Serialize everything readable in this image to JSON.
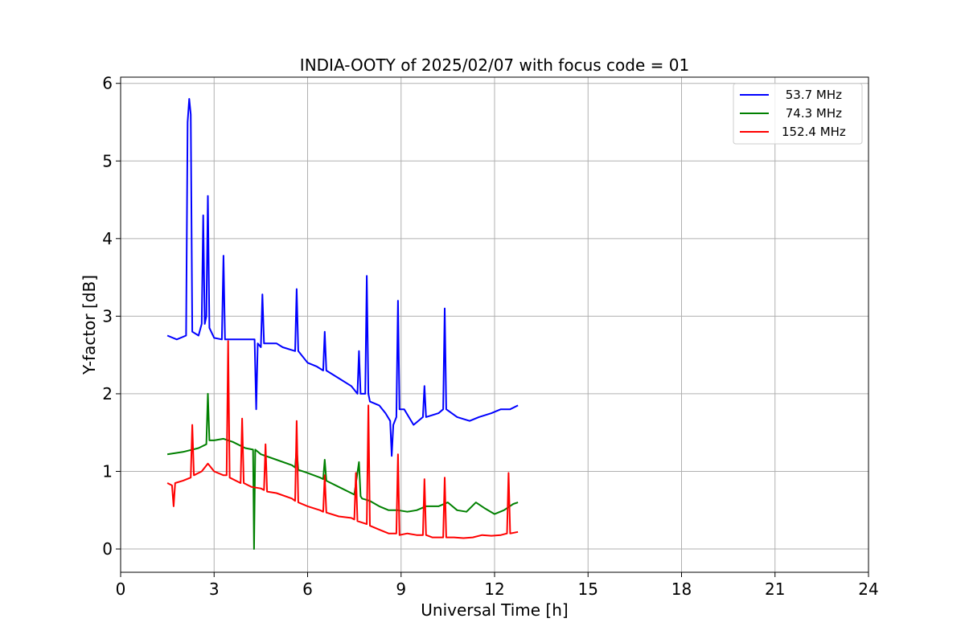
{
  "chart_data": {
    "type": "line",
    "title": "INDIA-OOTY of 2025/02/07 with focus code = 01",
    "xlabel": "Universal Time [h]",
    "ylabel": "Y-factor [dB]",
    "xlim": [
      0,
      24
    ],
    "ylim": [
      -0.3,
      6.08
    ],
    "xticks": [
      "0",
      "3",
      "6",
      "9",
      "12",
      "15",
      "18",
      "21",
      "24"
    ],
    "yticks": [
      "0",
      "1",
      "2",
      "3",
      "4",
      "5",
      "6"
    ],
    "grid": true,
    "legend_position": "top-right",
    "series": [
      {
        "name": " 53.7 MHz",
        "color": "#0000ff",
        "x": [
          1.5,
          1.8,
          2.1,
          2.15,
          2.2,
          2.25,
          2.3,
          2.5,
          2.6,
          2.65,
          2.7,
          2.75,
          2.8,
          2.85,
          3.0,
          3.25,
          3.3,
          3.35,
          3.6,
          4.0,
          4.3,
          4.35,
          4.4,
          4.5,
          4.55,
          4.6,
          4.65,
          5.0,
          5.2,
          5.6,
          5.65,
          5.7,
          6.0,
          6.3,
          6.5,
          6.55,
          6.6,
          7.0,
          7.4,
          7.6,
          7.65,
          7.7,
          7.85,
          7.9,
          7.95,
          8.0,
          8.3,
          8.5,
          8.65,
          8.7,
          8.75,
          8.85,
          8.9,
          8.95,
          9.1,
          9.4,
          9.7,
          9.75,
          9.8,
          10.2,
          10.35,
          10.4,
          10.45,
          10.8,
          11.2,
          11.5,
          11.9,
          12.2,
          12.5,
          12.75
        ],
        "y": [
          2.75,
          2.7,
          2.75,
          5.5,
          5.8,
          5.6,
          2.8,
          2.75,
          2.9,
          4.3,
          2.9,
          3.0,
          4.55,
          2.85,
          2.72,
          2.7,
          3.78,
          2.7,
          2.7,
          2.7,
          2.7,
          1.8,
          2.65,
          2.6,
          3.28,
          2.65,
          2.65,
          2.65,
          2.6,
          2.55,
          3.35,
          2.55,
          2.4,
          2.35,
          2.3,
          2.8,
          2.3,
          2.2,
          2.1,
          2.0,
          2.55,
          2.0,
          2.0,
          3.52,
          2.0,
          1.9,
          1.85,
          1.75,
          1.65,
          1.2,
          1.6,
          1.7,
          3.2,
          1.8,
          1.8,
          1.6,
          1.7,
          2.1,
          1.7,
          1.75,
          1.8,
          3.1,
          1.8,
          1.7,
          1.65,
          1.7,
          1.75,
          1.8,
          1.8,
          1.85
        ]
      },
      {
        "name": " 74.3 MHz",
        "color": "#008000",
        "x": [
          1.5,
          2.0,
          2.5,
          2.75,
          2.8,
          2.85,
          3.0,
          3.3,
          3.6,
          4.0,
          4.25,
          4.28,
          4.32,
          4.5,
          5.0,
          5.5,
          5.6,
          5.65,
          5.7,
          6.0,
          6.4,
          6.5,
          6.55,
          6.6,
          7.0,
          7.5,
          7.65,
          7.7,
          7.75,
          8.0,
          8.3,
          8.6,
          8.9,
          9.2,
          9.5,
          9.8,
          10.2,
          10.5,
          10.8,
          11.1,
          11.4,
          11.7,
          12.0,
          12.3,
          12.6,
          12.75
        ],
        "y": [
          1.22,
          1.25,
          1.3,
          1.35,
          2.0,
          1.4,
          1.4,
          1.42,
          1.38,
          1.3,
          1.28,
          0.0,
          1.28,
          1.22,
          1.15,
          1.08,
          1.05,
          1.3,
          1.02,
          0.98,
          0.92,
          0.9,
          1.15,
          0.88,
          0.8,
          0.7,
          1.12,
          0.68,
          0.65,
          0.62,
          0.55,
          0.5,
          0.5,
          0.48,
          0.5,
          0.55,
          0.55,
          0.6,
          0.5,
          0.48,
          0.6,
          0.52,
          0.45,
          0.5,
          0.58,
          0.6
        ]
      },
      {
        "name": "152.4 MHz",
        "color": "#ff0000",
        "x": [
          1.5,
          1.65,
          1.7,
          1.75,
          2.0,
          2.25,
          2.3,
          2.35,
          2.6,
          2.8,
          3.0,
          3.3,
          3.4,
          3.45,
          3.5,
          3.85,
          3.9,
          3.95,
          4.2,
          4.5,
          4.6,
          4.65,
          4.7,
          5.0,
          5.5,
          5.6,
          5.65,
          5.7,
          6.0,
          6.4,
          6.5,
          6.55,
          6.6,
          7.0,
          7.4,
          7.5,
          7.55,
          7.6,
          7.9,
          7.95,
          8.0,
          8.3,
          8.6,
          8.85,
          8.9,
          8.95,
          9.2,
          9.5,
          9.7,
          9.75,
          9.8,
          10.0,
          10.35,
          10.4,
          10.45,
          10.7,
          11.0,
          11.3,
          11.6,
          11.9,
          12.2,
          12.4,
          12.45,
          12.5,
          12.75
        ],
        "y": [
          0.85,
          0.82,
          0.55,
          0.85,
          0.88,
          0.92,
          1.6,
          0.95,
          1.0,
          1.1,
          1.0,
          0.95,
          0.95,
          2.68,
          0.92,
          0.85,
          1.68,
          0.85,
          0.8,
          0.78,
          0.76,
          1.35,
          0.74,
          0.72,
          0.65,
          0.62,
          1.65,
          0.6,
          0.55,
          0.5,
          0.48,
          0.95,
          0.47,
          0.42,
          0.4,
          0.38,
          0.98,
          0.36,
          0.32,
          1.85,
          0.3,
          0.25,
          0.2,
          0.2,
          1.22,
          0.18,
          0.2,
          0.18,
          0.18,
          0.9,
          0.18,
          0.15,
          0.15,
          0.92,
          0.15,
          0.15,
          0.14,
          0.15,
          0.18,
          0.17,
          0.18,
          0.2,
          0.98,
          0.2,
          0.22
        ]
      }
    ]
  }
}
